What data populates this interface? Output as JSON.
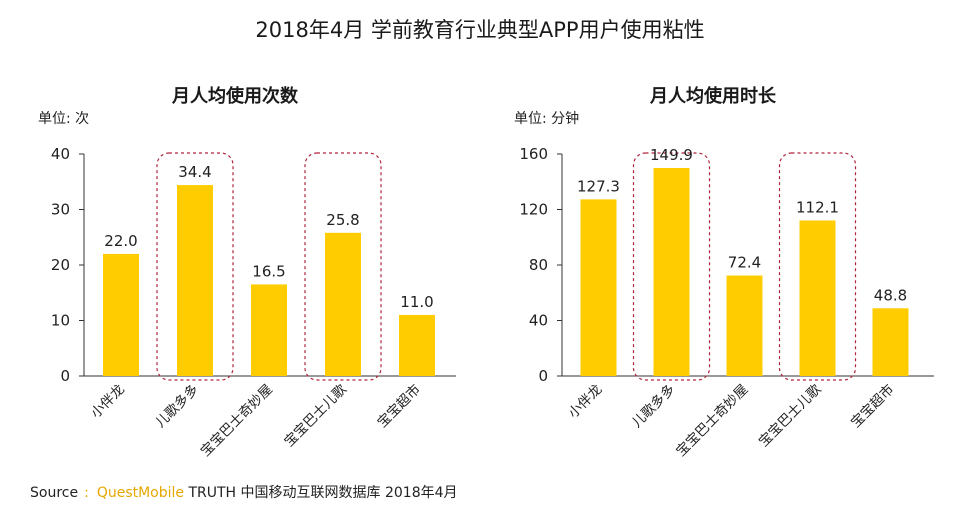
{
  "title": "2018年4月 学前教育行业典型APP用户使用粘性",
  "colors": {
    "bar": "#FFCC00",
    "highlight": "#B0243C",
    "axis": "#333333"
  },
  "chart_data": [
    {
      "type": "bar",
      "title": "月人均使用次数",
      "unit": "单位: 次",
      "categories": [
        "小伴龙",
        "儿歌多多",
        "宝宝巴士奇妙屋",
        "宝宝巴士儿歌",
        "宝宝超市"
      ],
      "values": [
        22.0,
        34.4,
        16.5,
        25.8,
        11.0
      ],
      "value_labels": [
        "22.0",
        "34.4",
        "16.5",
        "25.8",
        "11.0"
      ],
      "yticks": [
        "0",
        "10",
        "20",
        "30",
        "40"
      ],
      "ylim": [
        0,
        40
      ],
      "highlighted": [
        1,
        3
      ],
      "xlabel": "",
      "ylabel": "",
      "grid": false
    },
    {
      "type": "bar",
      "title": "月人均使用时长",
      "unit": "单位: 分钟",
      "categories": [
        "小伴龙",
        "儿歌多多",
        "宝宝巴士奇妙屋",
        "宝宝巴士儿歌",
        "宝宝超市"
      ],
      "values": [
        127.3,
        149.9,
        72.4,
        112.1,
        48.8
      ],
      "value_labels": [
        "127.3",
        "149.9",
        "72.4",
        "112.1",
        "48.8"
      ],
      "yticks": [
        "0",
        "40",
        "80",
        "120",
        "160"
      ],
      "ylim": [
        0,
        160
      ],
      "highlighted": [
        1,
        3
      ],
      "xlabel": "",
      "ylabel": "",
      "grid": false
    }
  ],
  "source": {
    "label": "Source",
    "separator": ":",
    "brand": "QuestMobile",
    "text": " TRUTH 中国移动互联网数据库 2018年4月"
  }
}
